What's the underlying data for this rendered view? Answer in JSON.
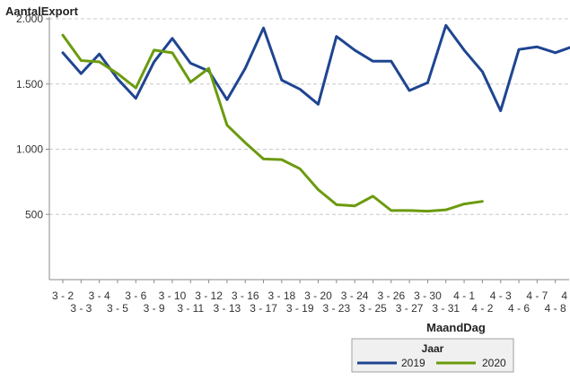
{
  "chart_data": {
    "type": "line",
    "ylabel": "AantalExport",
    "xlabel": "MaandDag",
    "ylim": [
      0,
      2000
    ],
    "yticks": [
      500,
      1000,
      1500,
      2000
    ],
    "ytick_labels": [
      "500",
      "1.000",
      "1.500",
      "2.000"
    ],
    "grid": "horizontal-dashed",
    "categories": [
      "3 - 2",
      "3 - 3",
      "3 - 4",
      "3 - 5",
      "3 - 6",
      "3 - 9",
      "3 - 10",
      "3 - 11",
      "3 - 12",
      "3 - 13",
      "3 - 16",
      "3 - 17",
      "3 - 18",
      "3 - 19",
      "3 - 20",
      "3 - 23",
      "3 - 24",
      "3 - 25",
      "3 - 26",
      "3 - 27",
      "3 - 30",
      "3 - 31",
      "4 - 1",
      "4 - 2",
      "4 - 3",
      "4 - 6",
      "4 - 7",
      "4 - 8",
      "4"
    ],
    "tick_rows": [
      "top",
      "bottom",
      "top",
      "bottom",
      "top",
      "bottom",
      "top",
      "bottom",
      "top",
      "bottom",
      "top",
      "bottom",
      "top",
      "bottom",
      "top",
      "bottom",
      "top",
      "bottom",
      "top",
      "bottom",
      "top",
      "bottom",
      "top",
      "bottom",
      "top",
      "bottom",
      "top",
      "bottom",
      "top"
    ],
    "legend": {
      "title": "Jaar",
      "position": "bottom-right"
    },
    "series": [
      {
        "name": "2019",
        "color": "#1f4591",
        "values": [
          1740,
          1580,
          1730,
          1540,
          1390,
          1670,
          1850,
          1660,
          1600,
          1380,
          1620,
          1930,
          1530,
          1460,
          1345,
          1865,
          1760,
          1675,
          1675,
          1450,
          1510,
          1950,
          1760,
          1595,
          1295,
          1765,
          1785,
          1740,
          1790
        ]
      },
      {
        "name": "2020",
        "color": "#6b9b0e",
        "values": [
          1875,
          1680,
          1670,
          1580,
          1470,
          1760,
          1740,
          1515,
          1620,
          1185,
          1050,
          925,
          920,
          850,
          690,
          575,
          565,
          640,
          530,
          530,
          525,
          535,
          580,
          600,
          null,
          null,
          null,
          null,
          null
        ]
      }
    ]
  }
}
